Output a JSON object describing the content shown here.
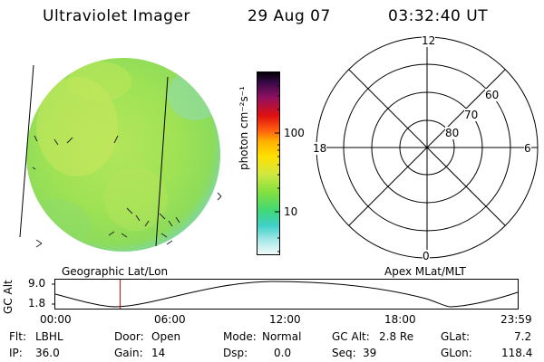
{
  "header": {
    "title": "Ultraviolet Imager",
    "date": "29 Aug 07",
    "time": "03:32:40 UT"
  },
  "colorbar": {
    "unit_label": "photon cm⁻²s⁻¹",
    "ticks": [
      "100",
      "10"
    ],
    "scale": "log"
  },
  "polar_plot": {
    "labels": {
      "top": "12",
      "left": "18",
      "right": "6",
      "bottom": "0"
    },
    "latitude_labels": [
      "60",
      "70",
      "80"
    ]
  },
  "orbit_plot": {
    "left_caption": "Geographic Lat/Lon",
    "right_caption": "Apex MLat/MLT",
    "y_label": "GC Alt",
    "y_ticks": [
      "9.0",
      "1.8"
    ],
    "x_ticks": [
      "00:00",
      "06:00",
      "12:00",
      "18:00",
      "23:59"
    ],
    "current_time_fraction": 0.14,
    "marker_color": "#c00000"
  },
  "info": {
    "flt_label": "Flt:",
    "flt_value": "LBHL",
    "ip_label": "IP:",
    "ip_value": "36.0",
    "door_label": "Door:",
    "door_value": "Open",
    "gain_label": "Gain:",
    "gain_value": "14",
    "mode_label": "Mode:",
    "mode_value": "Normal",
    "dsp_label": "Dsp:",
    "dsp_value": "0.0",
    "gcalt_label": "GC Alt:",
    "gcalt_value": "2.8 Re",
    "seq_label": "Seq:",
    "seq_value": "39",
    "glat_label": "GLat:",
    "glat_value": "7.2",
    "glon_label": "GLon:",
    "glon_value": "118.4"
  },
  "colors": {
    "disk_base": "#9fe040",
    "disk_bright": "#d4e84a",
    "disk_edge": "#70d0c8",
    "polar_lines": "#000000"
  }
}
